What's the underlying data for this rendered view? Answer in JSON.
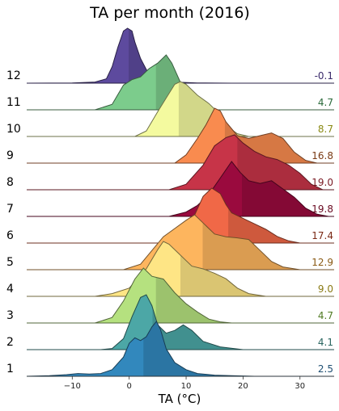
{
  "chart_data": {
    "type": "ridgeline",
    "title": "TA per month (2016)",
    "xlabel": "TA (°C)",
    "xlim": [
      -18,
      36
    ],
    "xticks": [
      -10,
      0,
      10,
      20,
      30
    ],
    "grid": false,
    "series": [
      {
        "name": "1",
        "mean_label": "2.5",
        "mean": 2.5,
        "color": "#3288bd",
        "label_color": "#1f4f73",
        "density": [
          [
            -18,
            0
          ],
          [
            -14,
            0.01
          ],
          [
            -11,
            0.03
          ],
          [
            -9,
            0.05
          ],
          [
            -7,
            0.04
          ],
          [
            -5,
            0.05
          ],
          [
            -3,
            0.12
          ],
          [
            -1,
            0.35
          ],
          [
            0,
            0.6
          ],
          [
            1,
            0.7
          ],
          [
            2,
            0.65
          ],
          [
            3,
            0.72
          ],
          [
            4,
            0.9
          ],
          [
            4.8,
            1.0
          ],
          [
            5.5,
            0.85
          ],
          [
            6.5,
            0.5
          ],
          [
            8,
            0.25
          ],
          [
            10,
            0.12
          ],
          [
            12,
            0.05
          ],
          [
            15,
            0.02
          ],
          [
            18,
            0.01
          ],
          [
            22,
            0
          ]
        ]
      },
      {
        "name": "2",
        "mean_label": "4.1",
        "mean": 4.1,
        "color": "#4ca7a6",
        "label_color": "#2a6660",
        "density": [
          [
            -5,
            0
          ],
          [
            -3,
            0.02
          ],
          [
            -1,
            0.2
          ],
          [
            0.5,
            0.6
          ],
          [
            2,
            0.95
          ],
          [
            3,
            1.0
          ],
          [
            4,
            0.8
          ],
          [
            5,
            0.45
          ],
          [
            6.5,
            0.3
          ],
          [
            8,
            0.35
          ],
          [
            9.5,
            0.45
          ],
          [
            11,
            0.35
          ],
          [
            13,
            0.15
          ],
          [
            16,
            0.05
          ],
          [
            20,
            0
          ]
        ]
      },
      {
        "name": "3",
        "mean_label": "4.7",
        "mean": 4.7,
        "color": "#b5e17f",
        "label_color": "#4f7a22",
        "density": [
          [
            -6,
            0
          ],
          [
            -3,
            0.1
          ],
          [
            -1,
            0.4
          ],
          [
            1,
            0.8
          ],
          [
            2.5,
            1.0
          ],
          [
            4,
            0.85
          ],
          [
            6,
            0.8
          ],
          [
            8,
            0.55
          ],
          [
            10,
            0.35
          ],
          [
            12,
            0.2
          ],
          [
            14,
            0.07
          ],
          [
            16,
            0.02
          ],
          [
            18,
            0
          ]
        ]
      },
      {
        "name": "4",
        "mean_label": "9.0",
        "mean": 9.0,
        "color": "#fee585",
        "label_color": "#8a7a14",
        "density": [
          [
            -6,
            0
          ],
          [
            -3,
            0.05
          ],
          [
            0,
            0.15
          ],
          [
            3,
            0.5
          ],
          [
            5,
            0.85
          ],
          [
            6,
            1.0
          ],
          [
            7,
            0.95
          ],
          [
            9,
            0.75
          ],
          [
            11,
            0.55
          ],
          [
            13,
            0.5
          ],
          [
            15,
            0.42
          ],
          [
            17,
            0.32
          ],
          [
            19,
            0.15
          ],
          [
            21,
            0.05
          ],
          [
            24,
            0
          ]
        ]
      },
      {
        "name": "5",
        "mean_label": "12.9",
        "mean": 12.9,
        "color": "#fdb55e",
        "label_color": "#8a5a14",
        "density": [
          [
            -1,
            0
          ],
          [
            2,
            0.1
          ],
          [
            4,
            0.35
          ],
          [
            6,
            0.6
          ],
          [
            8,
            0.75
          ],
          [
            10,
            0.9
          ],
          [
            11.5,
            1.0
          ],
          [
            13,
            0.85
          ],
          [
            15,
            0.65
          ],
          [
            17,
            0.6
          ],
          [
            19,
            0.58
          ],
          [
            21,
            0.55
          ],
          [
            23,
            0.35
          ],
          [
            25,
            0.15
          ],
          [
            27,
            0.05
          ],
          [
            30,
            0
          ]
        ]
      },
      {
        "name": "6",
        "mean_label": "17.4",
        "mean": 17.4,
        "color": "#f06847",
        "label_color": "#7a2814",
        "density": [
          [
            7,
            0
          ],
          [
            9,
            0.1
          ],
          [
            11,
            0.4
          ],
          [
            13,
            0.85
          ],
          [
            14.5,
            1.0
          ],
          [
            16,
            0.9
          ],
          [
            17,
            0.7
          ],
          [
            18,
            0.55
          ],
          [
            20,
            0.45
          ],
          [
            22,
            0.35
          ],
          [
            24,
            0.25
          ],
          [
            26,
            0.12
          ],
          [
            28,
            0.04
          ],
          [
            30,
            0
          ]
        ]
      },
      {
        "name": "7",
        "mean_label": "19.8",
        "mean": 19.8,
        "color": "#9a0a3e",
        "label_color": "#6a0a22",
        "density": [
          [
            7,
            0
          ],
          [
            10,
            0.08
          ],
          [
            12,
            0.2
          ],
          [
            14,
            0.4
          ],
          [
            16,
            0.7
          ],
          [
            18,
            1.0
          ],
          [
            19.5,
            0.8
          ],
          [
            21,
            0.65
          ],
          [
            23,
            0.6
          ],
          [
            25,
            0.65
          ],
          [
            27,
            0.5
          ],
          [
            29,
            0.35
          ],
          [
            31,
            0.15
          ],
          [
            33,
            0.04
          ],
          [
            35,
            0
          ]
        ]
      },
      {
        "name": "8",
        "mean_label": "19.0",
        "mean": 19.0,
        "color": "#c73448",
        "label_color": "#7a1a24",
        "density": [
          [
            7,
            0
          ],
          [
            10,
            0.1
          ],
          [
            13,
            0.45
          ],
          [
            15,
            0.8
          ],
          [
            17,
            0.95
          ],
          [
            18.5,
            1.0
          ],
          [
            20,
            0.85
          ],
          [
            22,
            0.7
          ],
          [
            24,
            0.6
          ],
          [
            26,
            0.55
          ],
          [
            28,
            0.45
          ],
          [
            30,
            0.3
          ],
          [
            32,
            0.1
          ],
          [
            34,
            0
          ]
        ]
      },
      {
        "name": "9",
        "mean_label": "16.8",
        "mean": 16.8,
        "color": "#f98b4f",
        "label_color": "#7a3a14",
        "density": [
          [
            8,
            0
          ],
          [
            10,
            0.15
          ],
          [
            12,
            0.45
          ],
          [
            13.5,
            0.7
          ],
          [
            15,
            1.0
          ],
          [
            16,
            0.95
          ],
          [
            17,
            0.75
          ],
          [
            19,
            0.5
          ],
          [
            21,
            0.45
          ],
          [
            23,
            0.5
          ],
          [
            25,
            0.55
          ],
          [
            27,
            0.45
          ],
          [
            29,
            0.2
          ],
          [
            31,
            0.05
          ],
          [
            33,
            0
          ]
        ]
      },
      {
        "name": "10",
        "mean_label": "8.7",
        "mean": 8.7,
        "color": "#f4fa9f",
        "label_color": "#8a8a14",
        "density": [
          [
            1,
            0
          ],
          [
            3,
            0.1
          ],
          [
            5,
            0.45
          ],
          [
            6.5,
            0.7
          ],
          [
            8,
            0.95
          ],
          [
            9,
            1.0
          ],
          [
            10,
            0.95
          ],
          [
            12,
            0.75
          ],
          [
            14,
            0.6
          ],
          [
            15.5,
            0.45
          ],
          [
            17,
            0.2
          ],
          [
            19,
            0.05
          ],
          [
            21,
            0
          ]
        ]
      },
      {
        "name": "11",
        "mean_label": "4.7",
        "mean": 4.7,
        "color": "#7ccc8c",
        "label_color": "#2a6a3a",
        "density": [
          [
            -6,
            0
          ],
          [
            -3,
            0.1
          ],
          [
            -1,
            0.45
          ],
          [
            0.5,
            0.55
          ],
          [
            2,
            0.6
          ],
          [
            3.5,
            0.75
          ],
          [
            5,
            0.85
          ],
          [
            6.5,
            1.0
          ],
          [
            7.5,
            0.85
          ],
          [
            9,
            0.5
          ],
          [
            11,
            0.2
          ],
          [
            13,
            0.05
          ],
          [
            15,
            0
          ]
        ]
      },
      {
        "name": "12",
        "mean_label": "-0.1",
        "mean": -0.1,
        "color": "#5d4a9e",
        "label_color": "#3a2a6a",
        "density": [
          [
            -18,
            0
          ],
          [
            -10,
            0.005
          ],
          [
            -6,
            0.02
          ],
          [
            -4,
            0.08
          ],
          [
            -3,
            0.3
          ],
          [
            -2,
            0.65
          ],
          [
            -1,
            0.95
          ],
          [
            -0.3,
            1.0
          ],
          [
            0.5,
            0.95
          ],
          [
            1,
            0.75
          ],
          [
            2,
            0.45
          ],
          [
            3,
            0.25
          ],
          [
            4,
            0.12
          ],
          [
            6,
            0.05
          ],
          [
            8,
            0.02
          ],
          [
            12,
            0.005
          ],
          [
            18,
            0
          ]
        ]
      }
    ]
  }
}
